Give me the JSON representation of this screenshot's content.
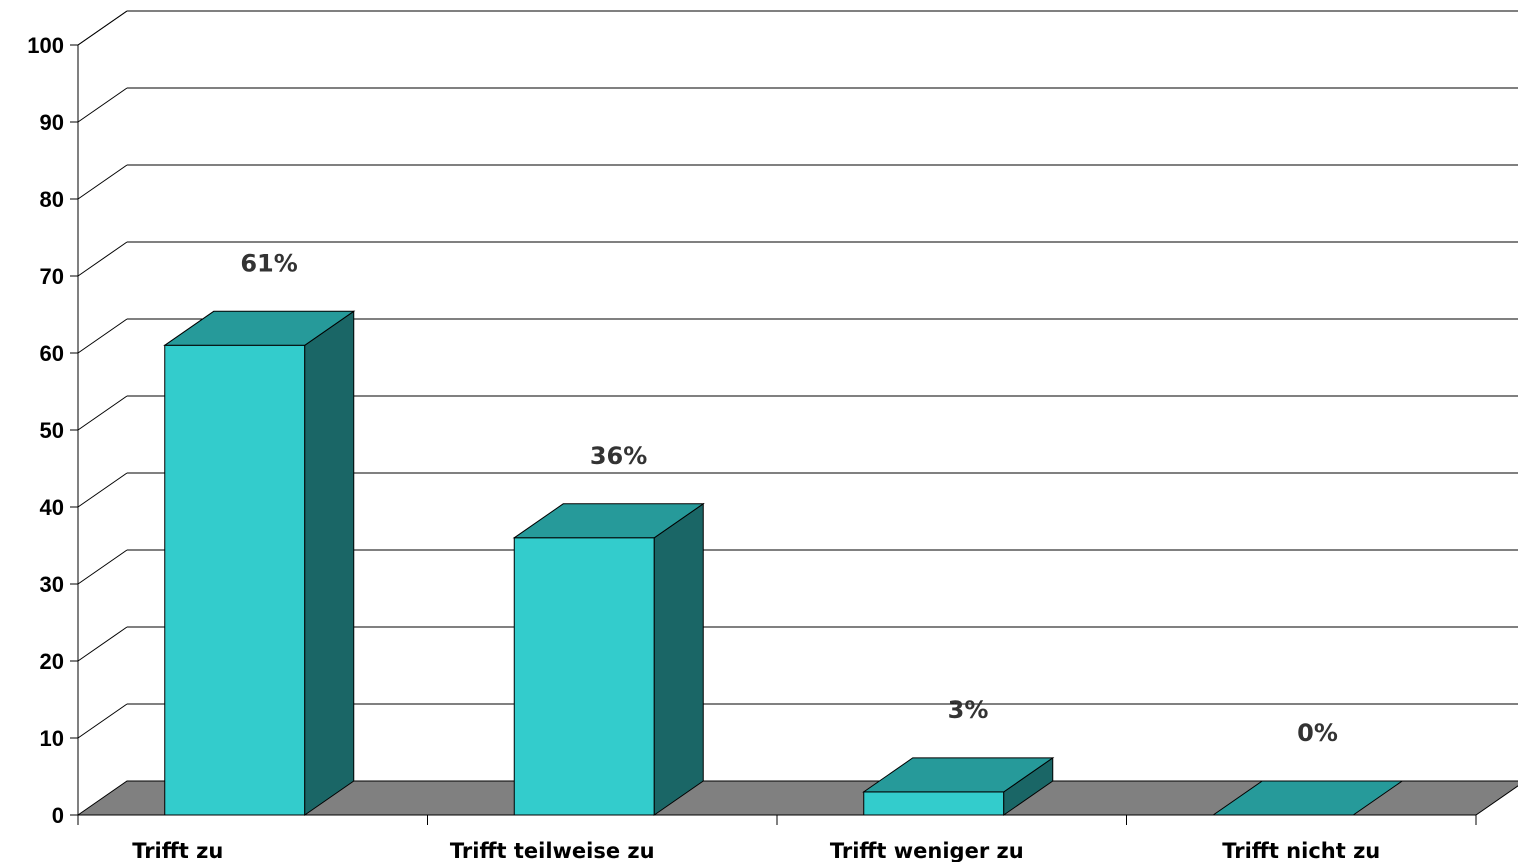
{
  "chart_data": {
    "type": "bar",
    "style": "3d",
    "categories": [
      "Trifft zu",
      "Trifft teilweise zu",
      "Trifft weniger zu",
      "Trifft nicht zu"
    ],
    "values": [
      61,
      36,
      3,
      0
    ],
    "data_labels": [
      "61%",
      "36%",
      "3%",
      "0%"
    ],
    "title": "",
    "xlabel": "",
    "ylabel": "",
    "ylim": [
      0,
      100
    ],
    "yticks": [
      "0",
      "10",
      "20",
      "30",
      "40",
      "50",
      "60",
      "70",
      "80",
      "90",
      "100"
    ],
    "grid": true,
    "legend": "none",
    "colors": {
      "bar_front": "#33cccc",
      "bar_top": "#269a9a",
      "bar_side": "#1a6666",
      "floor": "#808080",
      "grid": "#000000"
    }
  }
}
